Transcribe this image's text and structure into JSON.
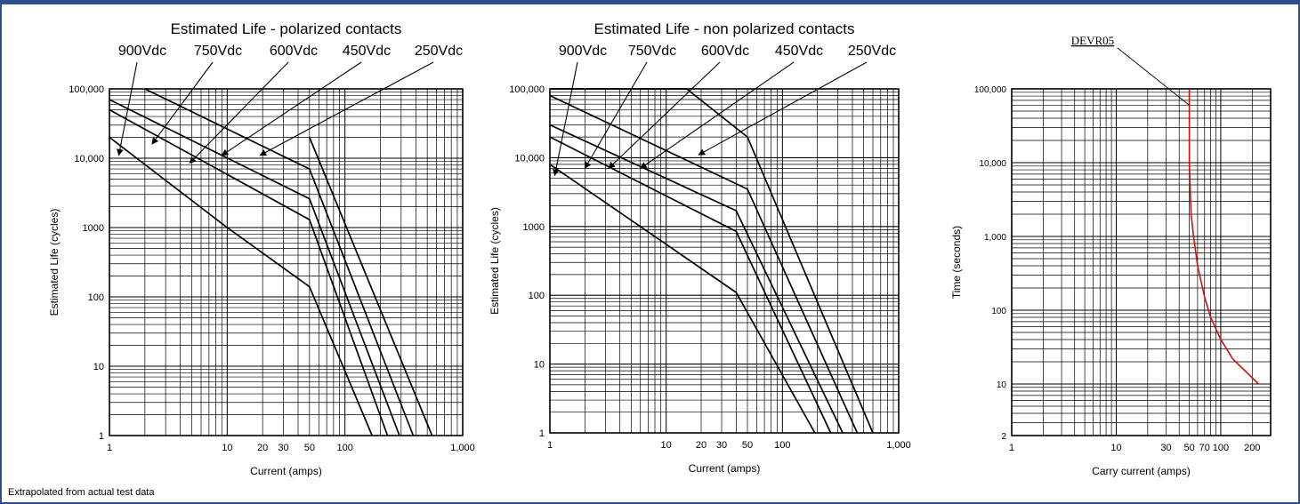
{
  "footnote": "Extrapolated from actual test data",
  "chart_data": [
    {
      "type": "line",
      "title": "Estimated Life - polarized contacts",
      "xlabel": "Current (amps)",
      "ylabel": "Estimated Life (cycles)",
      "x_scale": "log",
      "y_scale": "log",
      "xlim": [
        1,
        1000
      ],
      "ylim": [
        1,
        100000
      ],
      "grid": true,
      "x_ticks": [
        {
          "v": 1,
          "t": "1"
        },
        {
          "v": 10,
          "t": "10"
        },
        {
          "v": 20,
          "t": "20"
        },
        {
          "v": 30,
          "t": "30"
        },
        {
          "v": 50,
          "t": "50"
        },
        {
          "v": 100,
          "t": "100"
        },
        {
          "v": 1000,
          "t": "1,000"
        }
      ],
      "y_ticks": [
        {
          "v": 1,
          "t": "1"
        },
        {
          "v": 10,
          "t": "10"
        },
        {
          "v": 100,
          "t": "100"
        },
        {
          "v": 1000,
          "t": "1000"
        },
        {
          "v": 10000,
          "t": "10,000"
        },
        {
          "v": 100000,
          "t": "100,000"
        }
      ],
      "series": [
        {
          "name": "900Vdc",
          "points": [
            [
              1,
              20000
            ],
            [
              10,
              1000
            ],
            [
              50,
              140
            ],
            [
              170,
              1
            ]
          ],
          "arrow_to": [
            1.2,
            11000
          ]
        },
        {
          "name": "750Vdc",
          "points": [
            [
              1,
              50000
            ],
            [
              50,
              1300
            ],
            [
              230,
              1
            ]
          ],
          "arrow_to": [
            2.3,
            16000
          ]
        },
        {
          "name": "600Vdc",
          "points": [
            [
              1,
              70000
            ],
            [
              50,
              2600
            ],
            [
              290,
              1
            ]
          ],
          "arrow_to": [
            4.8,
            8500
          ]
        },
        {
          "name": "450Vdc",
          "points": [
            [
              2,
              100000
            ],
            [
              50,
              7000
            ],
            [
              380,
              1
            ]
          ],
          "arrow_to": [
            9,
            11000
          ]
        },
        {
          "name": "250Vdc",
          "points": [
            [
              50,
              20000
            ],
            [
              550,
              1
            ]
          ],
          "arrow_to": [
            19,
            11000
          ]
        }
      ]
    },
    {
      "type": "line",
      "title": "Estimated Life - non polarized contacts",
      "xlabel": "Current (amps)",
      "ylabel": "Estimated Life (cycles)",
      "x_scale": "log",
      "y_scale": "log",
      "xlim": [
        1,
        1000
      ],
      "ylim": [
        1,
        100000
      ],
      "grid": true,
      "x_ticks": [
        {
          "v": 1,
          "t": "1"
        },
        {
          "v": 10,
          "t": "10"
        },
        {
          "v": 20,
          "t": "20"
        },
        {
          "v": 30,
          "t": "30"
        },
        {
          "v": 50,
          "t": "50"
        },
        {
          "v": 100,
          "t": "100"
        },
        {
          "v": 1000,
          "t": "1,000"
        }
      ],
      "y_ticks": [
        {
          "v": 1,
          "t": "1"
        },
        {
          "v": 10,
          "t": "10"
        },
        {
          "v": 100,
          "t": "100"
        },
        {
          "v": 1000,
          "t": "1000"
        },
        {
          "v": 10000,
          "t": "10,000"
        },
        {
          "v": 100000,
          "t": "100,000"
        }
      ],
      "series": [
        {
          "name": "900Vdc",
          "points": [
            [
              1,
              8000
            ],
            [
              40,
              110
            ],
            [
              190,
              1
            ]
          ],
          "arrow_to": [
            1.1,
            5500
          ]
        },
        {
          "name": "750Vdc",
          "points": [
            [
              1,
              20000
            ],
            [
              40,
              850
            ],
            [
              260,
              1
            ]
          ],
          "arrow_to": [
            2,
            7000
          ]
        },
        {
          "name": "600Vdc",
          "points": [
            [
              1,
              30000
            ],
            [
              40,
              1700
            ],
            [
              330,
              1
            ]
          ],
          "arrow_to": [
            3.2,
            7000
          ]
        },
        {
          "name": "450Vdc",
          "points": [
            [
              1,
              80000
            ],
            [
              50,
              3500
            ],
            [
              440,
              1
            ]
          ],
          "arrow_to": [
            6,
            7000
          ]
        },
        {
          "name": "250Vdc",
          "points": [
            [
              1,
              100000
            ],
            [
              15,
              100000
            ],
            [
              50,
              20000
            ],
            [
              600,
              1
            ]
          ],
          "arrow_to": [
            19,
            11000
          ]
        }
      ]
    },
    {
      "type": "line",
      "title": "",
      "xlabel": "Carry current (amps)",
      "ylabel": "Time (seconds)",
      "x_scale": "log",
      "y_scale": "log",
      "xlim": [
        1,
        300
      ],
      "ylim": [
        2,
        100000
      ],
      "grid": true,
      "x_ticks": [
        {
          "v": 1,
          "t": "1"
        },
        {
          "v": 10,
          "t": "10"
        },
        {
          "v": 30,
          "t": "30"
        },
        {
          "v": 50,
          "t": "50"
        },
        {
          "v": 70,
          "t": "70"
        },
        {
          "v": 100,
          "t": "100"
        },
        {
          "v": 200,
          "t": "200"
        }
      ],
      "y_ticks": [
        {
          "v": 2,
          "t": "2"
        },
        {
          "v": 10,
          "t": "10"
        },
        {
          "v": 100,
          "t": "100"
        },
        {
          "v": 1000,
          "t": "1,000"
        },
        {
          "v": 10000,
          "t": "10,000"
        },
        {
          "v": 100000,
          "t": "100,000"
        }
      ],
      "series": [
        {
          "name": "DEVR05",
          "color": "#d01010",
          "points": [
            [
              50,
              100000
            ],
            [
              50,
              10000
            ],
            [
              52,
              2000
            ],
            [
              55,
              1000
            ],
            [
              60,
              400
            ],
            [
              70,
              150
            ],
            [
              80,
              80
            ],
            [
              100,
              40
            ],
            [
              130,
              22
            ],
            [
              230,
              10
            ]
          ],
          "arrow_to": [
            50,
            60000
          ]
        }
      ]
    }
  ]
}
